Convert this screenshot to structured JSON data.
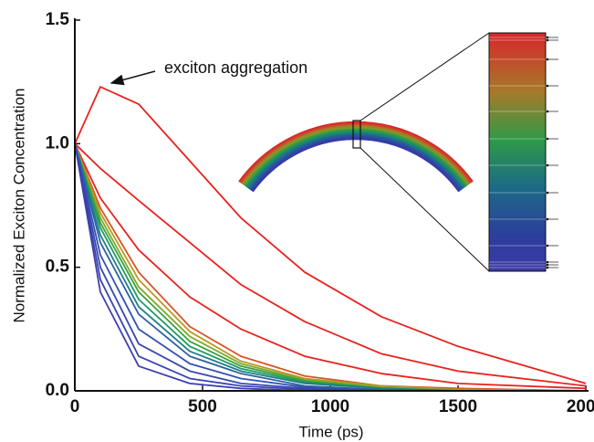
{
  "chart_data": {
    "type": "line",
    "x_label": "Time (ps)",
    "y_label": "Normalized Exciton Concentration",
    "annotation": "exciton aggregation",
    "x": [
      0,
      100,
      250,
      450,
      650,
      900,
      1200,
      1500,
      2000
    ],
    "series": [
      {
        "color": "#e8231f",
        "values": [
          1.0,
          1.23,
          1.16,
          0.93,
          0.7,
          0.48,
          0.3,
          0.18,
          0.03
        ]
      },
      {
        "color": "#e8231f",
        "values": [
          1.0,
          0.9,
          0.77,
          0.6,
          0.43,
          0.28,
          0.15,
          0.08,
          0.02
        ]
      },
      {
        "color": "#e8231f",
        "values": [
          1.0,
          0.78,
          0.57,
          0.38,
          0.25,
          0.14,
          0.07,
          0.03,
          0.01
        ]
      },
      {
        "color": "#d8552a",
        "values": [
          1.0,
          0.74,
          0.48,
          0.26,
          0.14,
          0.06,
          0.02,
          0.01,
          0
        ]
      },
      {
        "color": "#b89a22",
        "values": [
          1.0,
          0.72,
          0.45,
          0.24,
          0.12,
          0.05,
          0.02,
          0.005,
          0
        ]
      },
      {
        "color": "#7eaa2c",
        "values": [
          1.0,
          0.7,
          0.42,
          0.22,
          0.11,
          0.045,
          0.015,
          0.005,
          0
        ]
      },
      {
        "color": "#3ca03c",
        "values": [
          1.0,
          0.68,
          0.4,
          0.2,
          0.1,
          0.04,
          0.01,
          0,
          0
        ]
      },
      {
        "color": "#1e9a62",
        "values": [
          1.0,
          0.66,
          0.37,
          0.18,
          0.09,
          0.035,
          0.01,
          0,
          0
        ]
      },
      {
        "color": "#1e7e86",
        "values": [
          1.0,
          0.63,
          0.34,
          0.16,
          0.08,
          0.03,
          0.01,
          0,
          0
        ]
      },
      {
        "color": "#2e62a2",
        "values": [
          1.0,
          0.6,
          0.31,
          0.14,
          0.07,
          0.02,
          0.005,
          0,
          0
        ]
      },
      {
        "color": "#3252b0",
        "values": [
          1.0,
          0.55,
          0.25,
          0.11,
          0.05,
          0.015,
          0,
          0,
          0
        ]
      },
      {
        "color": "#3848b0",
        "values": [
          1.0,
          0.5,
          0.19,
          0.08,
          0.03,
          0.01,
          0,
          0,
          0
        ]
      },
      {
        "color": "#3a44b0",
        "values": [
          1.0,
          0.45,
          0.14,
          0.05,
          0.02,
          0.005,
          0,
          0,
          0
        ]
      },
      {
        "color": "#3c40ae",
        "values": [
          1.0,
          0.4,
          0.1,
          0.03,
          0.01,
          0,
          0,
          0,
          0
        ]
      }
    ],
    "xlim": [
      0,
      2000
    ],
    "xticks": [
      0,
      500,
      1000,
      1500,
      2000
    ],
    "ylim": [
      0,
      1.5
    ],
    "yticks": [
      {
        "value": 0,
        "label": "0.0"
      },
      {
        "value": 0.5,
        "label": "0.5"
      },
      {
        "value": 1,
        "label": "1.0"
      },
      {
        "value": 1.5,
        "label": "1.5"
      }
    ]
  }
}
